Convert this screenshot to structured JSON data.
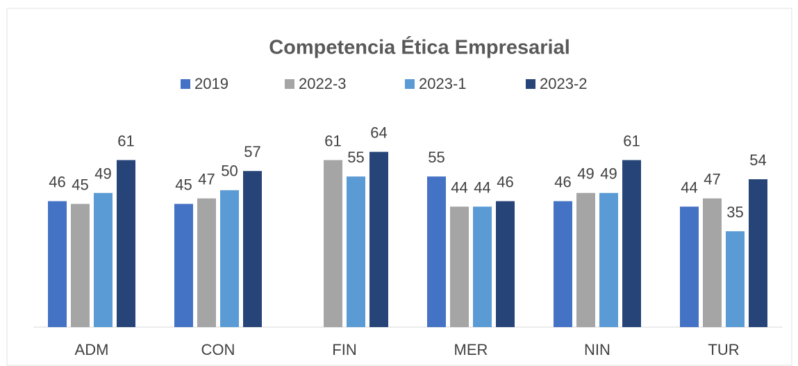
{
  "chart_data": {
    "type": "bar",
    "title": "Competencia Ética Empresarial",
    "categories": [
      "ADM",
      "CON",
      "FIN",
      "MER",
      "NIN",
      "TUR"
    ],
    "series": [
      {
        "name": "2019",
        "color": "#4472c4",
        "values": [
          46,
          45,
          null,
          55,
          46,
          44
        ]
      },
      {
        "name": "2022-3",
        "color": "#a5a5a5",
        "values": [
          45,
          47,
          61,
          44,
          49,
          47
        ]
      },
      {
        "name": "2023-1",
        "color": "#5b9bd5",
        "values": [
          49,
          50,
          55,
          44,
          49,
          35
        ]
      },
      {
        "name": "2023-2",
        "color": "#264478",
        "values": [
          61,
          57,
          64,
          46,
          61,
          54
        ]
      }
    ],
    "ylim": [
      0,
      70
    ],
    "legend": "top"
  }
}
